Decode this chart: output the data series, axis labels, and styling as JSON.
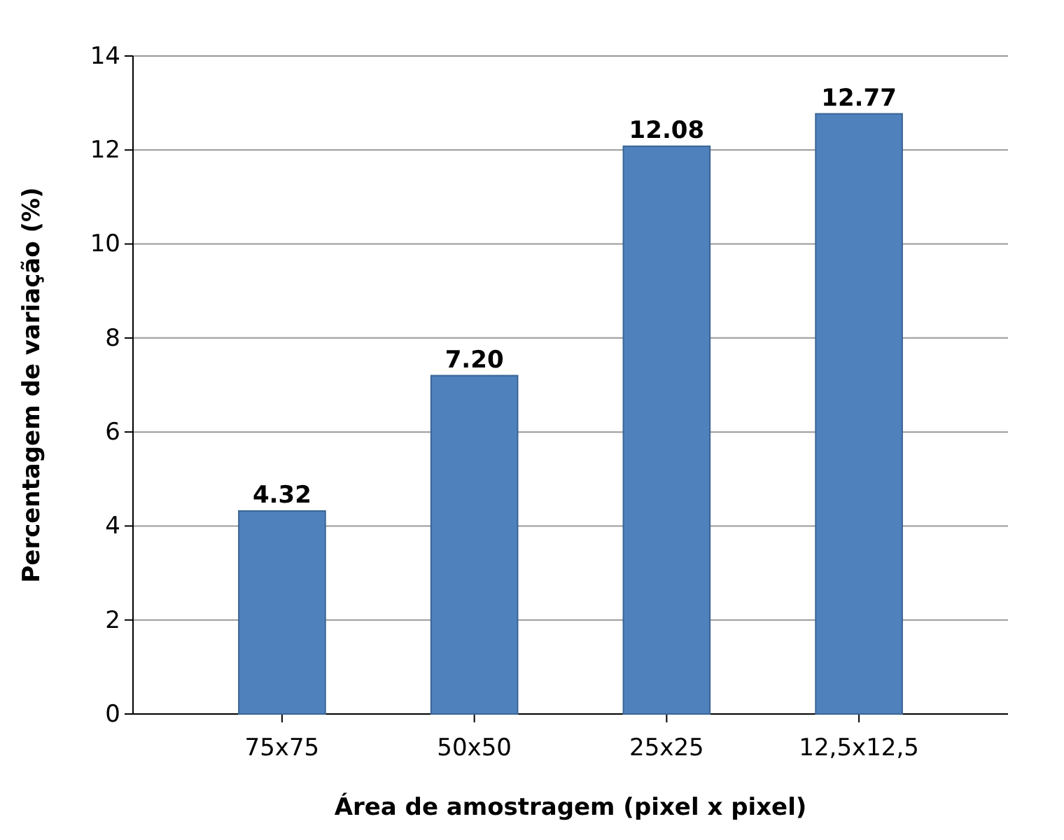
{
  "chart_data": {
    "type": "bar",
    "xlabel": "Área de amostragem (pixel x pixel)",
    "ylabel": "Percentagem de variação (%)",
    "categories": [
      "75x75",
      "50x50",
      "25x25",
      "12,5x12,5"
    ],
    "values": [
      4.32,
      7.2,
      12.08,
      12.77
    ],
    "value_labels": [
      "4.32",
      "7.20",
      "12.08",
      "12.77"
    ],
    "color": "#4f81bd",
    "ylim": [
      0,
      14
    ],
    "yticks": [
      0,
      2,
      4,
      6,
      8,
      10,
      12,
      14
    ],
    "grid": "y"
  }
}
